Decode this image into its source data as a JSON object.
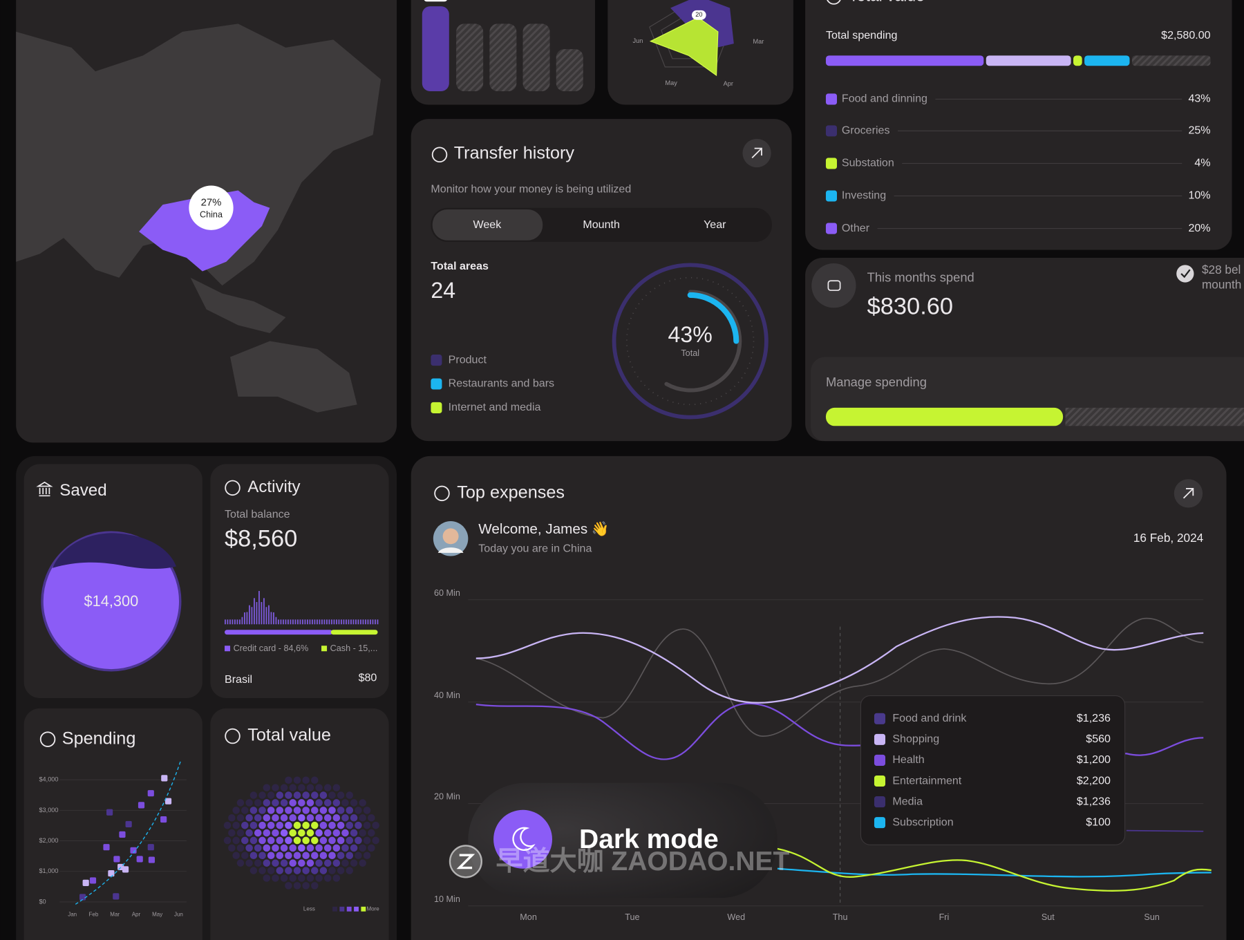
{
  "map": {
    "percent": "27%",
    "country": "China"
  },
  "radar": {
    "labels": [
      "Jun",
      "Mar",
      "May",
      "Apr"
    ],
    "badge": "20"
  },
  "total_value_card": {
    "title": "Total value",
    "spending_label": "Total spending",
    "spending_amount": "$2,580.00",
    "items": [
      {
        "name": "Food and dinning",
        "percent": "43%",
        "color": "#8b5cf6"
      },
      {
        "name": "Groceries",
        "percent": "25%",
        "color": "#3b2f6e"
      },
      {
        "name": "Substation",
        "percent": "4%",
        "color": "#c6f432"
      },
      {
        "name": "Investing",
        "percent": "10%",
        "color": "#1cb5f0"
      },
      {
        "name": "Other",
        "percent": "20%",
        "color": "#8b5cf6"
      }
    ]
  },
  "transfer": {
    "title": "Transfer history",
    "subtitle": "Monitor how your money is being utilized",
    "tabs": [
      "Week",
      "Mounth",
      "Year"
    ],
    "areas_label": "Total areas",
    "areas_value": "24",
    "legend": [
      {
        "name": "Product",
        "color": "#3b2f6e"
      },
      {
        "name": "Restaurants and bars",
        "color": "#1cb5f0"
      },
      {
        "name": "Internet and media",
        "color": "#c6f432"
      }
    ],
    "gauge_value": "43%",
    "gauge_label": "Total"
  },
  "month_spend": {
    "title": "This months spend",
    "amount": "$830.60",
    "note": "$28 bel",
    "note_line2": "mounth",
    "manage": "Manage spending"
  },
  "saved": {
    "title": "Saved",
    "amount": "$14,300"
  },
  "activity": {
    "title": "Activity",
    "balance_label": "Total balance",
    "balance": "$8,560",
    "legend": [
      "Credit card - 84,6%",
      "Cash - 15,..."
    ],
    "country": "Brasil",
    "country_value": "$80"
  },
  "spending": {
    "title": "Spending",
    "yticks": [
      "$4,000",
      "$3,000",
      "$2,000",
      "$1,000",
      "$0"
    ],
    "months": [
      "Jan",
      "Feb",
      "Mar",
      "Apr",
      "May",
      "Jun"
    ]
  },
  "heatmap": {
    "title": "Total value",
    "less": "Less",
    "more": "More"
  },
  "top_expenses": {
    "title": "Top expenses",
    "greeting": "Welcome, James 👋",
    "location": "Today you are in China",
    "date": "16 Feb, 2024",
    "yticks": [
      "60 Min",
      "40 Min",
      "20 Min",
      "10 Min"
    ],
    "days": [
      "Mon",
      "Tue",
      "Wed",
      "Thu",
      "Fri",
      "Sut",
      "Sun"
    ],
    "tooltip": [
      {
        "name": "Food and drink",
        "value": "$1,236",
        "color": "#4a3a8c"
      },
      {
        "name": "Shopping",
        "value": "$560",
        "color": "#c9b5f5"
      },
      {
        "name": "Health",
        "value": "$1,200",
        "color": "#7c4dde"
      },
      {
        "name": "Entertainment",
        "value": "$2,200",
        "color": "#c6f432"
      },
      {
        "name": "Media",
        "value": "$1,236",
        "color": "#3b2f6e"
      },
      {
        "name": "Subscription",
        "value": "$100",
        "color": "#1cb5f0"
      }
    ]
  },
  "dark_mode": {
    "label": "Dark mode"
  },
  "watermark": "早道大咖 ZAODAO.NET"
}
